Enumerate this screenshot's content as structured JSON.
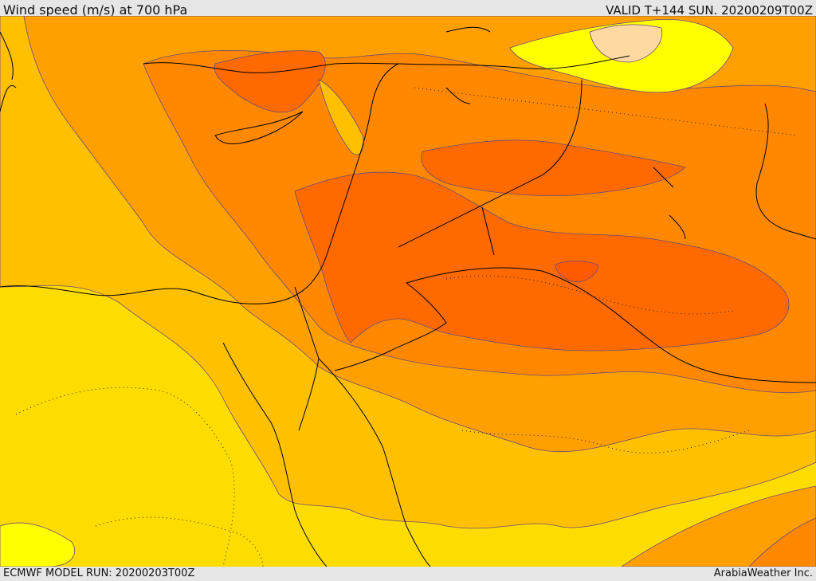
{
  "header": {
    "title": "Wind speed (m/s) at 700 hPa",
    "valid": "VALID T+144 SUN. 20200209T00Z"
  },
  "footer": {
    "model_run": "ECMWF MODEL RUN: 20200203T00Z",
    "credit": "ArabiaWeather Inc."
  },
  "colors": {
    "lightest": "#ffff00",
    "pale": "#ffd9a0",
    "level1": "#ffdc00",
    "level2": "#ffc000",
    "level3": "#ffa000",
    "level4": "#ff8800",
    "level5": "#ff6a00",
    "level6": "#ff5a00",
    "contour": "#6b4a78",
    "border": "#000000"
  }
}
